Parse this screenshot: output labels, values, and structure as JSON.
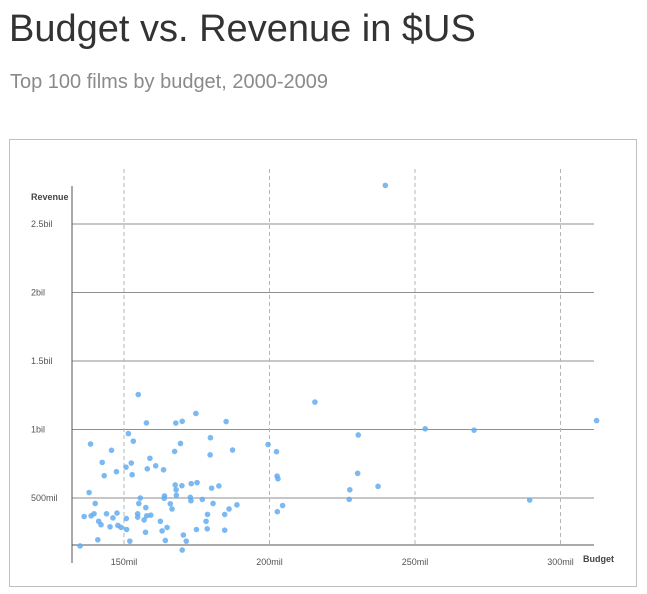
{
  "header": {
    "title": "Budget vs. Revenue in $US",
    "subtitle": "Top 100 films by budget, 2000-2009"
  },
  "chart_data": {
    "type": "scatter",
    "xlabel": "Budget",
    "ylabel": "Revenue",
    "xlim": [
      133,
      315
    ],
    "ylim": [
      150,
      2760
    ],
    "x_ticks": [
      150,
      200,
      250,
      300
    ],
    "x_tick_labels": [
      "150mil",
      "200mil",
      "250mil",
      "300mil"
    ],
    "y_ticks": [
      500,
      1000,
      1500,
      2000,
      2500
    ],
    "y_tick_labels": [
      "500mil",
      "1bil",
      "1.5bil",
      "2bil",
      "2.5bil"
    ],
    "grid": {
      "horizontal": "solid",
      "vertical": "dashed"
    },
    "point_color": "#64adf0",
    "units": {
      "x": "million US$",
      "y": "million US$"
    },
    "points": [
      [
        239.8,
        2782
      ],
      [
        215.6,
        1200
      ],
      [
        230.5,
        960
      ],
      [
        253.5,
        1005
      ],
      [
        270.3,
        995
      ],
      [
        312.4,
        1065
      ],
      [
        289.4,
        485
      ],
      [
        237.3,
        585
      ],
      [
        230.3,
        680
      ],
      [
        227.6,
        560
      ],
      [
        227.4,
        490
      ],
      [
        199.5,
        890
      ],
      [
        202.4,
        838
      ],
      [
        202.6,
        660
      ],
      [
        202.9,
        640
      ],
      [
        204.5,
        445
      ],
      [
        202.7,
        400
      ],
      [
        154.9,
        1255
      ],
      [
        174.7,
        1117
      ],
      [
        185.1,
        1058
      ],
      [
        170.0,
        1060
      ],
      [
        167.8,
        1047
      ],
      [
        157.7,
        1048
      ],
      [
        151.5,
        970
      ],
      [
        179.7,
        940
      ],
      [
        187.3,
        850
      ],
      [
        169.4,
        898
      ],
      [
        179.6,
        815
      ],
      [
        153.2,
        915
      ],
      [
        138.5,
        894
      ],
      [
        145.7,
        848
      ],
      [
        167.4,
        840
      ],
      [
        158.9,
        790
      ],
      [
        152.5,
        755
      ],
      [
        160.9,
        735
      ],
      [
        150.7,
        725
      ],
      [
        142.5,
        760
      ],
      [
        158.0,
        713
      ],
      [
        163.6,
        706
      ],
      [
        147.4,
        692
      ],
      [
        152.8,
        670
      ],
      [
        143.2,
        663
      ],
      [
        169.9,
        590
      ],
      [
        167.6,
        595
      ],
      [
        173.1,
        605
      ],
      [
        175.1,
        612
      ],
      [
        182.6,
        588
      ],
      [
        180.1,
        572
      ],
      [
        167.9,
        560
      ],
      [
        163.9,
        515
      ],
      [
        163.8,
        498
      ],
      [
        155.6,
        500
      ],
      [
        165.9,
        458
      ],
      [
        155.1,
        460
      ],
      [
        166.5,
        420
      ],
      [
        157.5,
        430
      ],
      [
        138.0,
        540
      ],
      [
        147.6,
        390
      ],
      [
        144.0,
        385
      ],
      [
        154.7,
        385
      ],
      [
        154.7,
        360
      ],
      [
        157.8,
        370
      ],
      [
        159.2,
        375
      ],
      [
        146.2,
        355
      ],
      [
        150.8,
        350
      ],
      [
        156.9,
        340
      ],
      [
        141.3,
        330
      ],
      [
        142.1,
        305
      ],
      [
        147.9,
        300
      ],
      [
        145.2,
        290
      ],
      [
        149.0,
        285
      ],
      [
        150.9,
        270
      ],
      [
        157.4,
        250
      ],
      [
        164.8,
        285
      ],
      [
        163.1,
        260
      ],
      [
        170.4,
        230
      ],
      [
        174.9,
        270
      ],
      [
        178.6,
        275
      ],
      [
        178.2,
        330
      ],
      [
        178.7,
        380
      ],
      [
        180.6,
        460
      ],
      [
        188.8,
        450
      ],
      [
        186.1,
        420
      ],
      [
        184.6,
        380
      ],
      [
        140.1,
        460
      ],
      [
        139.7,
        385
      ],
      [
        138.7,
        370
      ],
      [
        141.0,
        195
      ],
      [
        136.3,
        365
      ],
      [
        152.0,
        185
      ],
      [
        164.2,
        190
      ],
      [
        168.0,
        520
      ],
      [
        172.8,
        505
      ],
      [
        176.9,
        490
      ],
      [
        173.0,
        480
      ],
      [
        162.5,
        330
      ],
      [
        184.6,
        265
      ],
      [
        171.4,
        185
      ],
      [
        170.0,
        120
      ],
      [
        134.9,
        150
      ]
    ]
  }
}
